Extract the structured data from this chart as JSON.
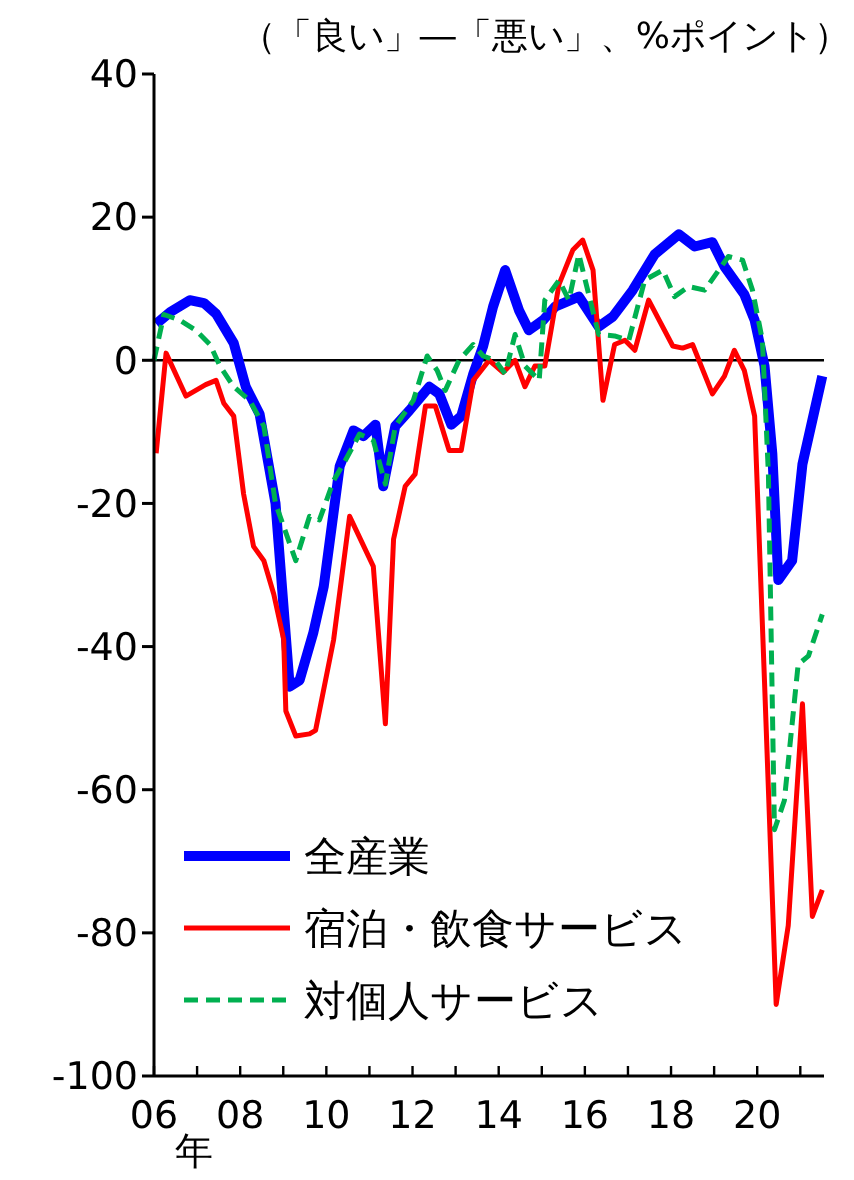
{
  "chart_data": {
    "type": "line",
    "ylabel": "（「良い」―「悪い」、%ポイント）",
    "xlabel": "年",
    "xlim": [
      2006,
      2021.55
    ],
    "xticks": [
      {
        "value": 2006,
        "label": "06"
      },
      {
        "value": 2007,
        "label": null
      },
      {
        "value": 2008,
        "label": "08"
      },
      {
        "value": 2009,
        "label": null
      },
      {
        "value": 2010,
        "label": "10"
      },
      {
        "value": 2011,
        "label": null
      },
      {
        "value": 2012,
        "label": "12"
      },
      {
        "value": 2013,
        "label": null
      },
      {
        "value": 2014,
        "label": "14"
      },
      {
        "value": 2015,
        "label": null
      },
      {
        "value": 2016,
        "label": "16"
      },
      {
        "value": 2017,
        "label": null
      },
      {
        "value": 2018,
        "label": "18"
      },
      {
        "value": 2019,
        "label": null
      },
      {
        "value": 2020,
        "label": "20"
      },
      {
        "value": 2021,
        "label": null
      }
    ],
    "ylim": [
      -100,
      40
    ],
    "yticks": [
      -100,
      -80,
      -60,
      -40,
      -20,
      0,
      20,
      40
    ],
    "grid": false,
    "legend": "bottom left",
    "marker": "none",
    "ref_lines": [
      {
        "axis": "y",
        "value": 0,
        "color": "#000000"
      }
    ],
    "series": [
      {
        "name": "全産業",
        "color": "#0000ff",
        "line_style": "solid",
        "x": [
          2006.05,
          2006.37,
          2006.83,
          2007.16,
          2007.44,
          2007.85,
          2008.13,
          2008.45,
          2008.82,
          2009.15,
          2009.38,
          2009.7,
          2009.94,
          2010.31,
          2010.63,
          2010.86,
          2011.14,
          2011.32,
          2011.6,
          2011.93,
          2012.39,
          2012.62,
          2012.9,
          2013.13,
          2013.41,
          2013.64,
          2013.87,
          2014.15,
          2014.47,
          2014.7,
          2015.03,
          2015.31,
          2015.86,
          2016.32,
          2016.65,
          2017.11,
          2017.62,
          2018.18,
          2018.55,
          2018.96,
          2019.24,
          2019.7,
          2019.94,
          2020.17,
          2020.35,
          2020.49,
          2020.81,
          2021.05,
          2021.51
        ],
        "values": [
          5.1,
          6.7,
          8.4,
          8,
          6.5,
          2.4,
          -3.7,
          -7.5,
          -20,
          -45.6,
          -44.7,
          -38,
          -31.6,
          -14.8,
          -9.8,
          -10.6,
          -9,
          -17.6,
          -9.2,
          -7,
          -3.7,
          -4.7,
          -9,
          -7.8,
          -1.9,
          2,
          7.5,
          12.6,
          7,
          4.2,
          5.6,
          7.5,
          8.9,
          4.7,
          6.1,
          9.8,
          14.8,
          17.6,
          15.9,
          16.5,
          13.1,
          9.2,
          5.6,
          -0.8,
          -13,
          -30.7,
          -28,
          -14.5,
          -2.2
        ]
      },
      {
        "name": "宿泊・飲食サービス",
        "color": "#ff0000",
        "line_style": "solid",
        "x": [
          2006.05,
          2006.28,
          2006.74,
          2007.2,
          2007.44,
          2007.62,
          2007.85,
          2008.08,
          2008.31,
          2008.55,
          2008.78,
          2009.01,
          2009.06,
          2009.29,
          2009.61,
          2009.75,
          2010.17,
          2010.54,
          2011.09,
          2011.37,
          2011.56,
          2011.83,
          2012.06,
          2012.3,
          2012.53,
          2012.85,
          2013.13,
          2013.41,
          2013.78,
          2014.1,
          2014.38,
          2014.61,
          2014.84,
          2015.07,
          2015.4,
          2015.72,
          2015.95,
          2016.19,
          2016.42,
          2016.69,
          2016.93,
          2017.16,
          2017.48,
          2018.04,
          2018.27,
          2018.5,
          2018.96,
          2019.24,
          2019.47,
          2019.7,
          2019.94,
          2020.17,
          2020.44,
          2020.72,
          2021.05,
          2021.28,
          2021.51
        ],
        "values": [
          -13,
          1,
          -5,
          -3.4,
          -2.8,
          -6,
          -7.8,
          -18.7,
          -26,
          -28,
          -32.7,
          -39,
          -49,
          -52.5,
          -52.2,
          -51.7,
          -39,
          -21.8,
          -28.8,
          -50.8,
          -25,
          -17.6,
          -15.9,
          -6.4,
          -6.4,
          -12.6,
          -12.6,
          -2.8,
          0,
          -1.7,
          0,
          -3.7,
          -0.8,
          -0.8,
          10.6,
          15.4,
          16.8,
          12.6,
          -5.6,
          2.2,
          2.8,
          1.4,
          8.4,
          2,
          1.7,
          2.2,
          -4.7,
          -2.2,
          1.4,
          -1.4,
          -7.8,
          -45,
          -90,
          -79,
          -48,
          -77.7,
          -74
        ]
      },
      {
        "name": "対個人サービス",
        "color": "#00b050",
        "line_style": "dashed",
        "x": [
          2006,
          2006.23,
          2006.6,
          2006.97,
          2007.3,
          2007.53,
          2007.85,
          2008.22,
          2008.55,
          2008.82,
          2009.29,
          2009.61,
          2009.84,
          2010.17,
          2010.44,
          2010.77,
          2011.09,
          2011.37,
          2011.6,
          2012.02,
          2012.34,
          2012.57,
          2012.76,
          2013.08,
          2013.41,
          2013.64,
          2013.92,
          2014.15,
          2014.38,
          2014.61,
          2014.94,
          2015.07,
          2015.4,
          2015.63,
          2015.86,
          2016.09,
          2016.32,
          2016.69,
          2017.02,
          2017.39,
          2017.81,
          2018.08,
          2018.41,
          2018.78,
          2019.33,
          2019.66,
          2019.89,
          2020.12,
          2020.26,
          2020.4,
          2020.63,
          2020.95,
          2021.19,
          2021.51
        ],
        "values": [
          0,
          6.4,
          5.6,
          4.2,
          2.2,
          -0.8,
          -3.7,
          -5.6,
          -9.2,
          -20,
          -28,
          -21.8,
          -22.3,
          -16.8,
          -14,
          -10.3,
          -11.2,
          -17.3,
          -9.2,
          -5.6,
          0.6,
          -1.4,
          -4.2,
          0,
          2.2,
          0.6,
          0,
          -1.9,
          3.6,
          -0.8,
          -2.8,
          8.4,
          11.2,
          8.4,
          14.8,
          9.2,
          3.6,
          3.4,
          2.8,
          11.2,
          12.6,
          8.9,
          10.3,
          9.8,
          14.5,
          14,
          9.8,
          2.8,
          -15.9,
          -65.6,
          -61.5,
          -42.5,
          -41.3,
          -35.5
        ]
      }
    ]
  }
}
